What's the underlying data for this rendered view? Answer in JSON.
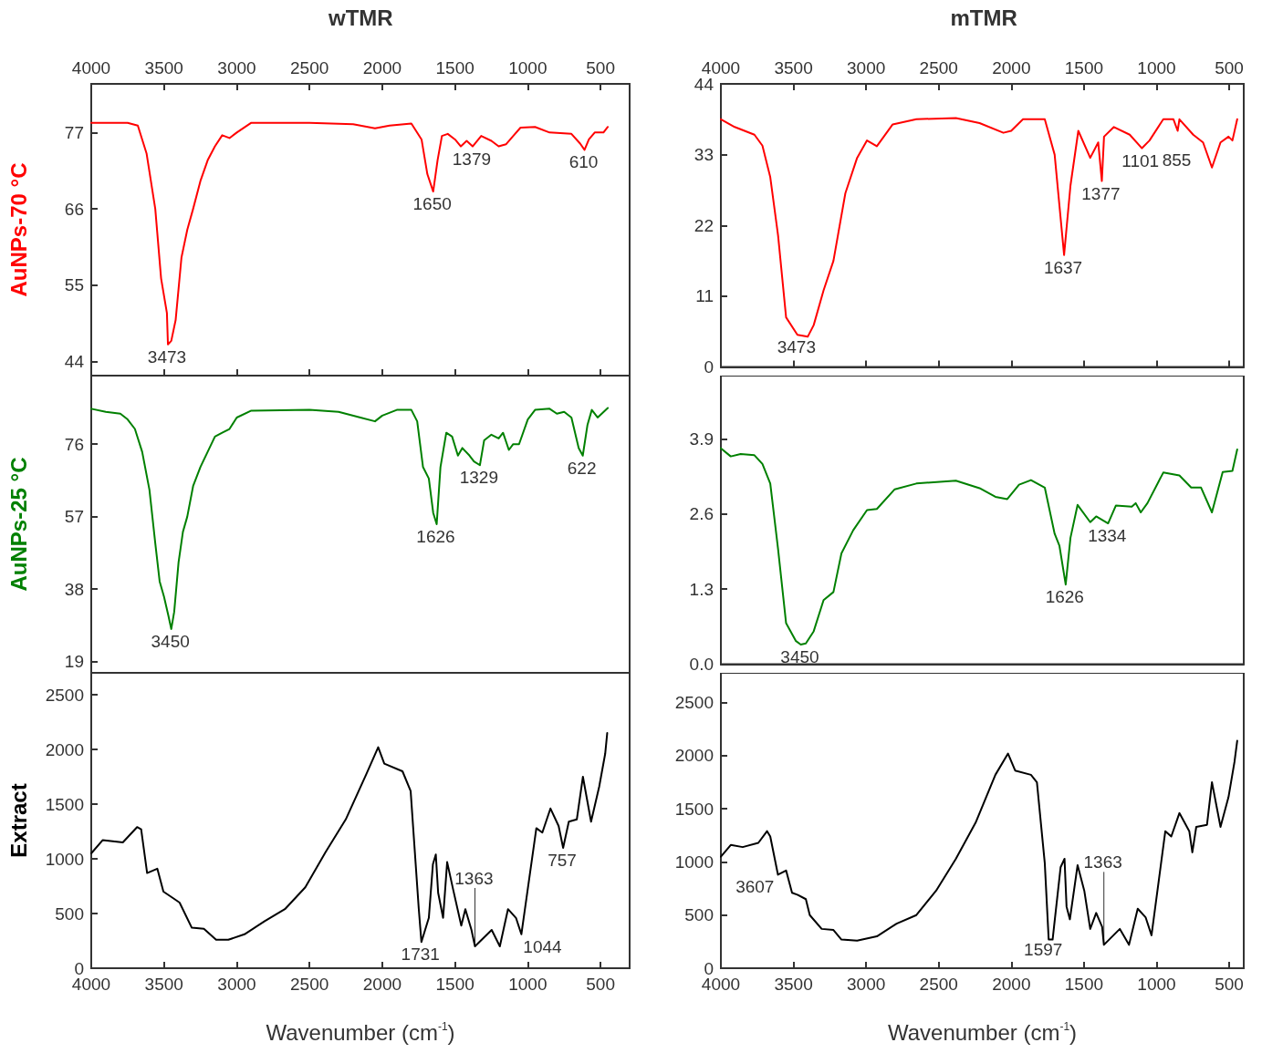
{
  "chart_data": [
    {
      "type": "line",
      "title": "wTMR",
      "ylabel": "AuNPs-70 °C",
      "xlim": [
        4000,
        300
      ],
      "x2lim": [
        4000,
        300
      ],
      "x2ticks": [
        4000,
        3500,
        3000,
        2500,
        2000,
        1500,
        1000,
        500
      ],
      "tick_labels": "y",
      "ylim": [
        42,
        84
      ],
      "yticks": [
        44,
        55,
        66,
        77
      ],
      "series": [
        {
          "color": "#ff0000",
          "x": [
            4000,
            3750,
            3680,
            3620,
            3560,
            3520,
            3480,
            3473,
            3450,
            3420,
            3380,
            3340,
            3300,
            3250,
            3200,
            3150,
            3100,
            3050,
            3000,
            2900,
            2500,
            2200,
            2050,
            1950,
            1800,
            1730,
            1690,
            1650,
            1620,
            1590,
            1550,
            1500,
            1460,
            1420,
            1379,
            1320,
            1250,
            1200,
            1150,
            1100,
            1050,
            950,
            850,
            700,
            640,
            610,
            580,
            540,
            480,
            450
          ],
          "values": [
            78.4,
            78.4,
            78,
            74,
            66,
            56,
            51,
            46.5,
            47,
            50,
            59,
            63,
            66,
            70,
            73,
            75,
            76.6,
            76.2,
            77,
            78.4,
            78.4,
            78.2,
            77.6,
            78,
            78.3,
            76,
            71,
            68.5,
            73,
            76.5,
            76.8,
            76,
            75,
            75.8,
            75,
            76.5,
            75.8,
            75,
            75.3,
            76.5,
            77.7,
            77.8,
            77,
            76.8,
            75.4,
            74.5,
            76,
            77,
            77,
            77.8
          ]
        }
      ],
      "annotations": [
        {
          "text": "3473",
          "x": 3473,
          "y": 46.5
        },
        {
          "text": "1650",
          "x": 1650,
          "y": 68.5
        },
        {
          "text": "1379",
          "x": 1379,
          "y": 75
        },
        {
          "text": "610",
          "x": 610,
          "y": 74.5
        }
      ]
    },
    {
      "type": "line",
      "title": "mTMR",
      "xlim": [
        4000,
        400
      ],
      "x2lim": [
        4000,
        400
      ],
      "x2ticks": [
        4000,
        3500,
        3000,
        2500,
        2000,
        1500,
        1000,
        500
      ],
      "tick_labels": "y",
      "ylim": [
        0,
        44
      ],
      "yticks": [
        0,
        11,
        22,
        33,
        44
      ],
      "series": [
        {
          "color": "#ff0000",
          "x": [
            4000,
            3905,
            3769,
            3714,
            3660,
            3606,
            3551,
            3473,
            3402,
            3361,
            3293,
            3225,
            3143,
            3062,
            2994,
            2926,
            2817,
            2654,
            2382,
            2219,
            2055,
            2001,
            1920,
            1770,
            1702,
            1637,
            1593,
            1539,
            1457,
            1402,
            1377,
            1362,
            1294,
            1185,
            1101,
            1049,
            954,
            884,
            855,
            843,
            748,
            680,
            619,
            560,
            505,
            478,
            445
          ],
          "values": [
            38.5,
            37.3,
            36.1,
            34.4,
            29.5,
            20.4,
            7.7,
            5,
            4.7,
            6.5,
            11.9,
            16.5,
            27,
            32.5,
            35.2,
            34.3,
            37.7,
            38.5,
            38.7,
            37.9,
            36.4,
            36.7,
            38.5,
            38.5,
            33,
            17.4,
            28.2,
            36.7,
            32.5,
            34.9,
            28.9,
            35.8,
            37.3,
            36.1,
            34,
            35.2,
            38.5,
            38.5,
            36.7,
            38.5,
            36.1,
            34.9,
            31,
            34.9,
            35.8,
            35.2,
            38.5
          ]
        }
      ],
      "annotations": [
        {
          "text": "3473",
          "x": 3473,
          "y": 5
        },
        {
          "text": "1637",
          "x": 1637,
          "y": 17.4
        },
        {
          "text": "1377",
          "x": 1377,
          "y": 28.9
        },
        {
          "text": "1101",
          "x": 1101,
          "y": 34
        },
        {
          "text": "855",
          "x": 855,
          "y": 36.7
        }
      ]
    },
    {
      "type": "line",
      "ylabel": "AuNPs-25 °C",
      "xlim": [
        4000,
        300
      ],
      "tick_labels": "y",
      "ylim": [
        16,
        94
      ],
      "yticks": [
        19,
        38,
        57,
        76
      ],
      "series": [
        {
          "color": "#008000",
          "x": [
            4000,
            3900,
            3800,
            3750,
            3700,
            3650,
            3600,
            3560,
            3530,
            3500,
            3470,
            3450,
            3430,
            3400,
            3370,
            3340,
            3300,
            3250,
            3200,
            3150,
            3100,
            3050,
            3000,
            2900,
            2500,
            2300,
            2150,
            2050,
            2000,
            1900,
            1800,
            1760,
            1720,
            1680,
            1650,
            1626,
            1600,
            1560,
            1520,
            1480,
            1450,
            1400,
            1370,
            1329,
            1300,
            1250,
            1200,
            1170,
            1130,
            1100,
            1060,
            1000,
            950,
            850,
            800,
            750,
            700,
            650,
            622,
            590,
            560,
            520,
            450
          ],
          "values": [
            85.3,
            84.5,
            84,
            82.5,
            80,
            74,
            64,
            50,
            40,
            36,
            31,
            27.5,
            32,
            45,
            53,
            57,
            65,
            70,
            74,
            78,
            79,
            80,
            83,
            84.8,
            85,
            84.5,
            83,
            82,
            83.5,
            85,
            85,
            82,
            70,
            67,
            58,
            55,
            70,
            79,
            78,
            73,
            75,
            73,
            71.5,
            70.5,
            77,
            78.5,
            77.5,
            79,
            74.5,
            76,
            76,
            82.5,
            85,
            85.3,
            84,
            84.5,
            83,
            75,
            73,
            81,
            85,
            83,
            85.5
          ]
        }
      ],
      "annotations": [
        {
          "text": "3450",
          "x": 3450,
          "y": 27.5
        },
        {
          "text": "1626",
          "x": 1626,
          "y": 55
        },
        {
          "text": "1329",
          "x": 1329,
          "y": 70.5
        },
        {
          "text": "622",
          "x": 622,
          "y": 73
        }
      ]
    },
    {
      "type": "line",
      "xlim": [
        4000,
        400
      ],
      "tick_labels": "y",
      "ylim": [
        0,
        5
      ],
      "yticks": [
        {
          "value": 0,
          "label": "0.0"
        },
        1.3,
        2.6,
        3.9
      ],
      "series": [
        {
          "color": "#008000",
          "x": [
            4000,
            3932,
            3864,
            3769,
            3714,
            3660,
            3606,
            3551,
            3483,
            3450,
            3415,
            3361,
            3293,
            3225,
            3170,
            3089,
            2994,
            2926,
            2803,
            2654,
            2382,
            2219,
            2110,
            2028,
            1947,
            1865,
            1770,
            1702,
            1669,
            1626,
            1593,
            1544,
            1457,
            1416,
            1334,
            1280,
            1171,
            1144,
            1109,
            1063,
            954,
            843,
            762,
            694,
            619,
            545,
            478,
            445
          ],
          "values": [
            3.74,
            3.6,
            3.64,
            3.62,
            3.47,
            3.13,
            1.99,
            0.71,
            0.4,
            0.34,
            0.36,
            0.57,
            1.11,
            1.25,
            1.92,
            2.32,
            2.67,
            2.69,
            3.03,
            3.13,
            3.18,
            3.05,
            2.9,
            2.86,
            3.11,
            3.19,
            3.06,
            2.26,
            2.05,
            1.38,
            2.19,
            2.76,
            2.46,
            2.56,
            2.44,
            2.75,
            2.73,
            2.79,
            2.63,
            2.79,
            3.32,
            3.27,
            3.06,
            3.06,
            2.63,
            3.33,
            3.35,
            3.72
          ]
        }
      ],
      "annotations": [
        {
          "text": "3450",
          "x": 3450,
          "y": 0.34
        },
        {
          "text": "1626",
          "x": 1626,
          "y": 1.38
        },
        {
          "text": "1334",
          "x": 1334,
          "y": 2.44
        }
      ]
    },
    {
      "type": "line",
      "ylabel": "Extract",
      "xlabel": "Wavenumber (cm$^{-1}$)",
      "xlim": [
        4000,
        300
      ],
      "xticks": [
        4000,
        3500,
        3000,
        2500,
        2000,
        1500,
        1000,
        500
      ],
      "ylim": [
        0,
        2700
      ],
      "yticks": [
        0,
        500,
        1000,
        1500,
        2000,
        2500
      ],
      "series": [
        {
          "color": "#000000",
          "x": [
            4000,
            3922,
            3783,
            3685,
            3657,
            3616,
            3546,
            3504,
            3448,
            3393,
            3309,
            3226,
            3142,
            3058,
            2947,
            2808,
            2669,
            2529,
            2390,
            2251,
            2111,
            2028,
            1986,
            1861,
            1805,
            1749,
            1731,
            1680,
            1652,
            1632,
            1616,
            1582,
            1554,
            1513,
            1457,
            1429,
            1387,
            1363,
            1248,
            1192,
            1136,
            1081,
            1044,
            941,
            900,
            844,
            788,
            757,
            718,
            663,
            621,
            565,
            509,
            468,
            454
          ],
          "values": [
            1050,
            1170,
            1150,
            1290,
            1270,
            870,
            910,
            700,
            650,
            600,
            370,
            360,
            260,
            260,
            310,
            430,
            540,
            740,
            1060,
            1360,
            1770,
            2020,
            1870,
            1800,
            1620,
            540,
            240,
            460,
            950,
            1040,
            690,
            460,
            970,
            720,
            390,
            540,
            350,
            200,
            350,
            200,
            540,
            460,
            310,
            1280,
            1240,
            1460,
            1300,
            1100,
            1340,
            1360,
            1750,
            1340,
            1660,
            1960,
            2150
          ]
        }
      ],
      "annotations": [
        {
          "text": "1731",
          "x": 1731,
          "y": 240
        },
        {
          "text": "1363",
          "x": 1363,
          "y": 200
        },
        {
          "text": "1044",
          "x": 1044,
          "y": 310
        },
        {
          "text": "757",
          "x": 757,
          "y": 1100
        }
      ]
    },
    {
      "type": "line",
      "xlabel": "Wavenumber (cm$^{-1}$)",
      "xlim": [
        4000,
        400
      ],
      "xticks": [
        4000,
        3500,
        3000,
        2500,
        2000,
        1500,
        1000,
        500
      ],
      "ylim": [
        0,
        2780
      ],
      "yticks": [
        0,
        500,
        1000,
        1500,
        2000,
        2500
      ],
      "series": [
        {
          "color": "#000000",
          "x": [
            4000,
            3932,
            3850,
            3742,
            3682,
            3660,
            3607,
            3551,
            3510,
            3470,
            3415,
            3388,
            3306,
            3225,
            3170,
            3062,
            2926,
            2790,
            2654,
            2518,
            2382,
            2246,
            2110,
            2023,
            1974,
            1865,
            1824,
            1770,
            1743,
            1716,
            1661,
            1634,
            1620,
            1597,
            1544,
            1498,
            1457,
            1416,
            1375,
            1363,
            1253,
            1190,
            1130,
            1076,
            1035,
            940,
            899,
            843,
            775,
            754,
            727,
            653,
            619,
            560,
            505,
            464,
            445
          ],
          "values": [
            1050,
            1160,
            1140,
            1180,
            1290,
            1240,
            880,
            920,
            710,
            690,
            650,
            500,
            370,
            360,
            270,
            260,
            300,
            420,
            500,
            730,
            1030,
            1370,
            1820,
            2020,
            1860,
            1820,
            1750,
            990,
            270,
            270,
            950,
            1030,
            580,
            460,
            970,
            730,
            370,
            520,
            390,
            220,
            370,
            220,
            560,
            480,
            310,
            1290,
            1240,
            1460,
            1290,
            1090,
            1330,
            1350,
            1750,
            1330,
            1610,
            1940,
            2140
          ]
        }
      ],
      "annotations": [
        {
          "text": "3607",
          "x": 3607,
          "y": 880
        },
        {
          "text": "1597",
          "x": 1597,
          "y": 460
        },
        {
          "text": "1363",
          "x": 1363,
          "y": 220
        }
      ]
    }
  ]
}
